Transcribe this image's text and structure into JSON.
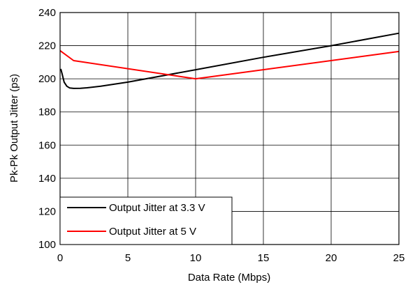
{
  "chart_data": {
    "type": "line",
    "xlabel": "Data Rate (Mbps)",
    "ylabel": "Pk-Pk Output Jitter (ps)",
    "xlim": [
      0,
      25
    ],
    "ylim": [
      100,
      240
    ],
    "xticks": [
      0,
      5,
      10,
      15,
      20,
      25
    ],
    "yticks": [
      100,
      120,
      140,
      160,
      180,
      200,
      220,
      240
    ],
    "grid": true,
    "legend_placement": "bottom-left",
    "series": [
      {
        "name": "Output Jitter at 3.3 V",
        "color": "#000000",
        "x": [
          0.05,
          0.15,
          0.3,
          0.5,
          0.7,
          1.0,
          1.5,
          2,
          3,
          5,
          10,
          15,
          20,
          25
        ],
        "y": [
          206,
          203,
          198,
          195.5,
          194.5,
          194.2,
          194.3,
          194.6,
          195.5,
          198,
          205.5,
          213,
          220,
          227.5
        ]
      },
      {
        "name": "Output Jitter at 5 V",
        "color": "#ff0000",
        "x": [
          0,
          1,
          10,
          25
        ],
        "y": [
          217,
          211,
          200,
          216.5
        ]
      }
    ]
  }
}
